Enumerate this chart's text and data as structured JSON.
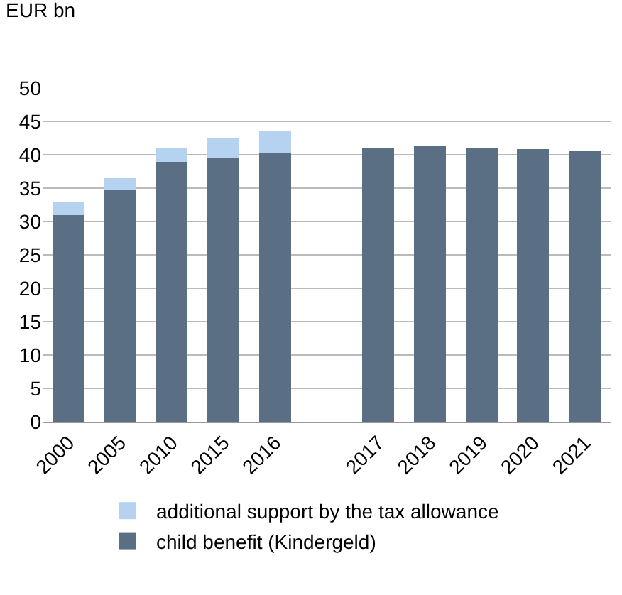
{
  "chart_data": {
    "type": "bar",
    "ylabel": "EUR bn",
    "categories": [
      "2000",
      "2005",
      "2010",
      "2015",
      "2016",
      null,
      "2017",
      "2018",
      "2019",
      "2020",
      "2021"
    ],
    "series": [
      {
        "name": "child benefit (Kindergeld)",
        "color": "#5b6f84",
        "values": [
          31.0,
          34.7,
          38.9,
          39.5,
          40.3,
          null,
          41.1,
          41.4,
          41.1,
          40.9,
          40.6
        ]
      },
      {
        "name": "additional support by the tax allowance",
        "color": "#b5d3f0",
        "values": [
          1.9,
          1.9,
          2.2,
          3.0,
          3.3,
          null,
          null,
          null,
          null,
          null,
          null
        ]
      }
    ],
    "stacked": true,
    "ylim": [
      0,
      50
    ],
    "yticks": [
      0,
      5,
      10,
      15,
      20,
      25,
      30,
      35,
      40,
      45,
      50
    ],
    "grid": "y",
    "legend": "bottom"
  }
}
